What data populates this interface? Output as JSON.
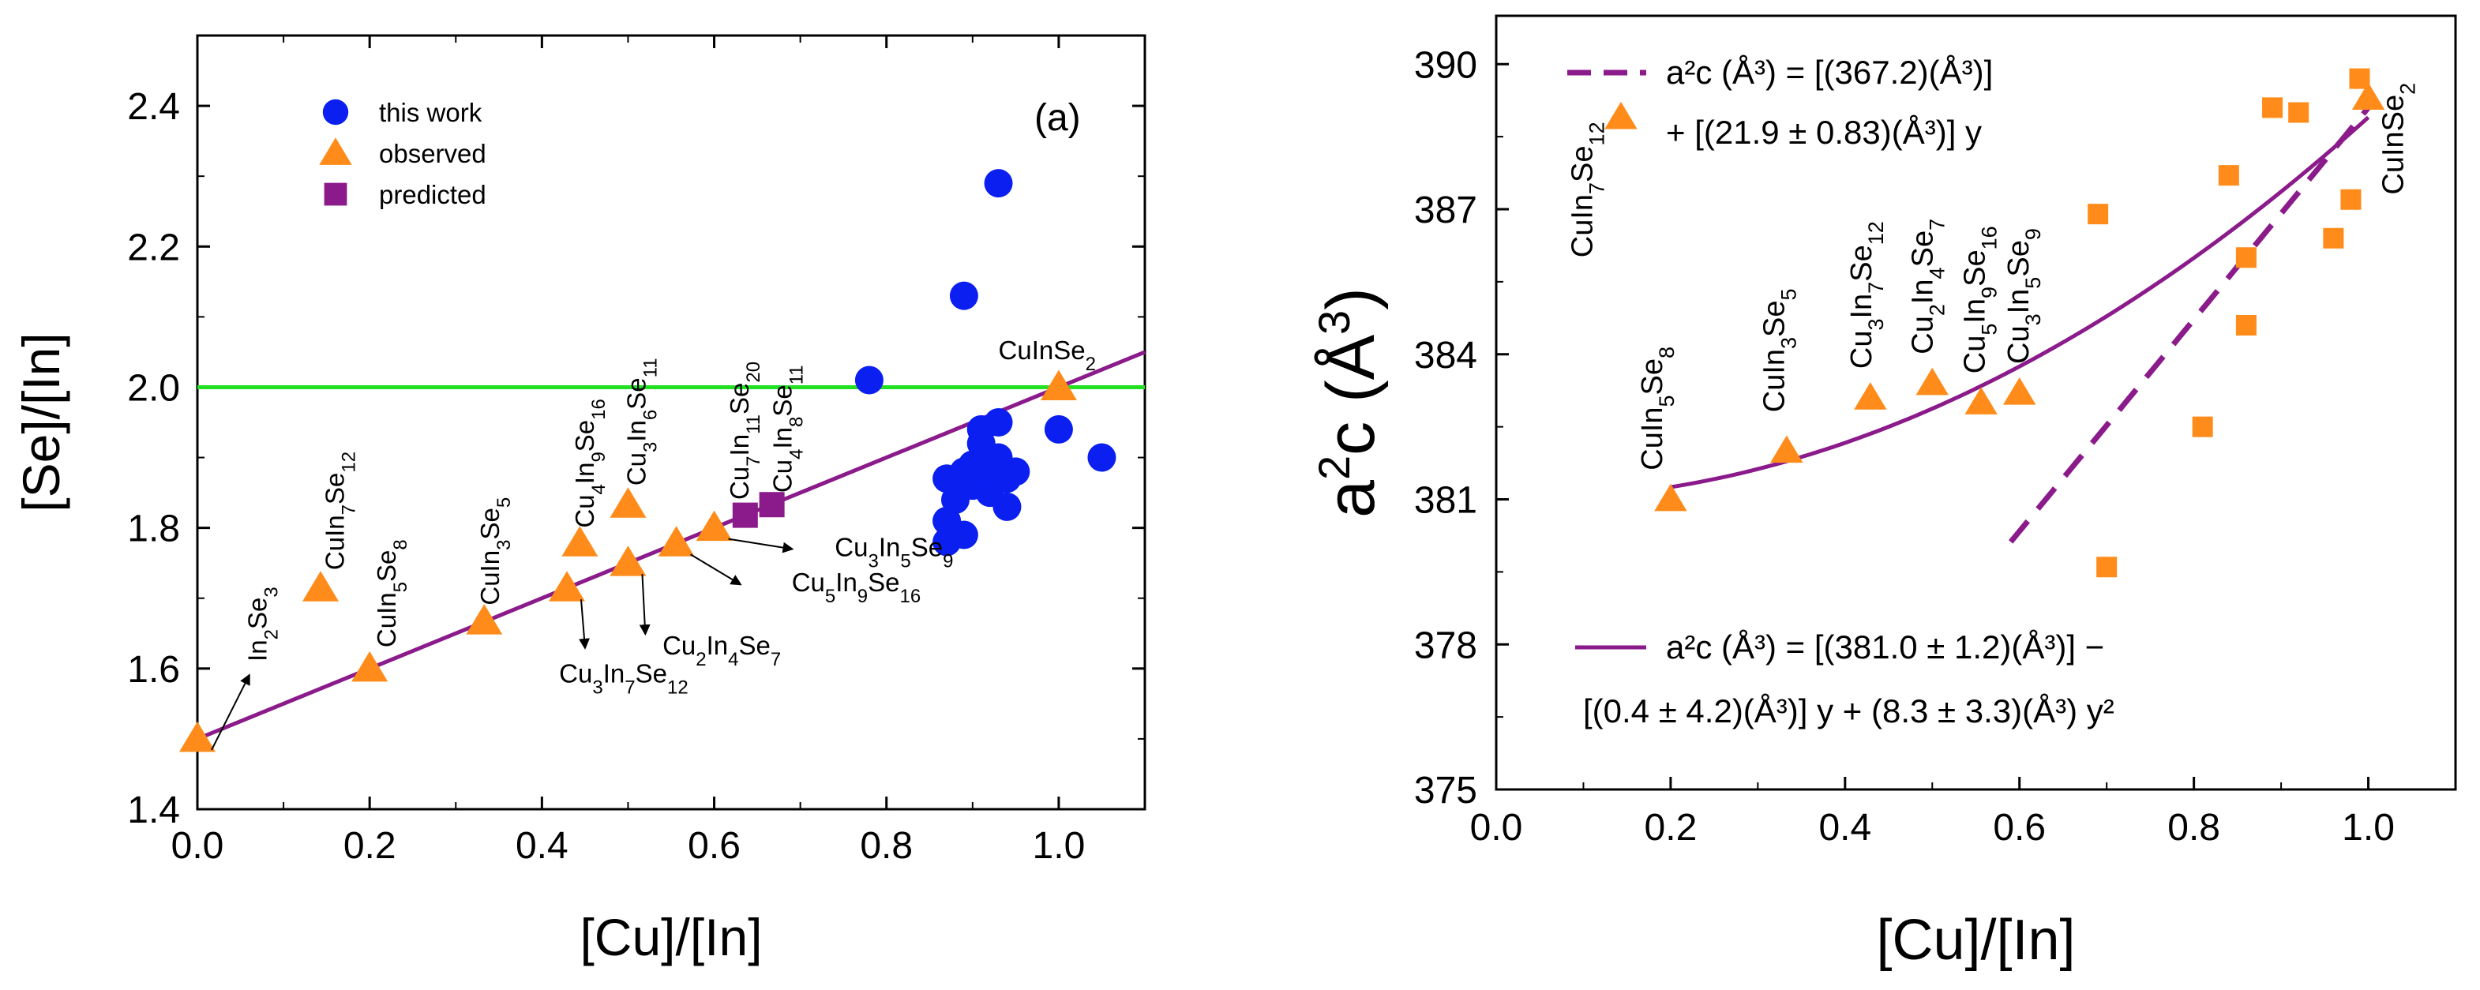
{
  "chart_data": [
    {
      "type": "scatter",
      "panel_label": "(a)",
      "xlabel": "[Cu]/[In]",
      "ylabel": "[Se]/[In]",
      "xlim": [
        0.0,
        1.1
      ],
      "ylim": [
        1.4,
        2.5
      ],
      "xticks": [
        "0.0",
        "0.2",
        "0.4",
        "0.6",
        "0.8",
        "1.0"
      ],
      "yticks": [
        "1.4",
        "1.6",
        "1.8",
        "2.0",
        "2.2",
        "2.4"
      ],
      "legend_position": "top-left",
      "series": [
        {
          "name": "this work",
          "marker": "circle",
          "color": "#0a1ff0",
          "points": [
            {
              "x": 0.78,
              "y": 2.01
            },
            {
              "x": 0.89,
              "y": 2.13
            },
            {
              "x": 0.93,
              "y": 2.29
            },
            {
              "x": 1.0,
              "y": 1.94
            },
            {
              "x": 1.05,
              "y": 1.9
            },
            {
              "x": 0.87,
              "y": 1.78
            },
            {
              "x": 0.87,
              "y": 1.81
            },
            {
              "x": 0.87,
              "y": 1.87
            },
            {
              "x": 0.88,
              "y": 1.84
            },
            {
              "x": 0.89,
              "y": 1.79
            },
            {
              "x": 0.89,
              "y": 1.88
            },
            {
              "x": 0.9,
              "y": 1.86
            },
            {
              "x": 0.9,
              "y": 1.89
            },
            {
              "x": 0.91,
              "y": 1.92
            },
            {
              "x": 0.91,
              "y": 1.94
            },
            {
              "x": 0.92,
              "y": 1.88
            },
            {
              "x": 0.92,
              "y": 1.85
            },
            {
              "x": 0.93,
              "y": 1.9
            },
            {
              "x": 0.93,
              "y": 1.95
            },
            {
              "x": 0.94,
              "y": 1.83
            },
            {
              "x": 0.94,
              "y": 1.87
            },
            {
              "x": 0.95,
              "y": 1.88
            }
          ]
        },
        {
          "name": "observed",
          "marker": "triangle",
          "color": "#ff8c1a",
          "points": [
            {
              "x": 0.0,
              "y": 1.5
            },
            {
              "x": 0.143,
              "y": 1.714
            },
            {
              "x": 0.2,
              "y": 1.6
            },
            {
              "x": 0.333,
              "y": 1.667
            },
            {
              "x": 0.429,
              "y": 1.714
            },
            {
              "x": 0.444,
              "y": 1.778
            },
            {
              "x": 0.5,
              "y": 1.75
            },
            {
              "x": 0.5,
              "y": 1.833
            },
            {
              "x": 0.556,
              "y": 1.778
            },
            {
              "x": 0.6,
              "y": 1.8
            },
            {
              "x": 1.0,
              "y": 2.0
            }
          ]
        },
        {
          "name": "predicted",
          "marker": "square",
          "color": "#8b1a8b",
          "points": [
            {
              "x": 0.636,
              "y": 1.818
            },
            {
              "x": 0.667,
              "y": 1.833
            }
          ]
        }
      ],
      "lines": [
        {
          "color": "#22e022",
          "x": [
            0.0,
            1.1
          ],
          "y": [
            2.0,
            2.0
          ]
        },
        {
          "color": "#8b1a8b",
          "x": [
            0.0,
            1.1
          ],
          "y": [
            1.5,
            2.05
          ]
        }
      ],
      "annotations": [
        {
          "base": "In",
          "sub1": "2",
          "mid": "Se",
          "sub2": "3",
          "x": 0.08,
          "y": 1.61,
          "rotated": true
        },
        {
          "base": "CuIn",
          "sub1": "7",
          "mid": "Se",
          "sub2": "12",
          "x": 0.17,
          "y": 1.74,
          "rotated": true
        },
        {
          "base": "CuIn",
          "sub1": "5",
          "mid": "Se",
          "sub2": "8",
          "x": 0.23,
          "y": 1.63,
          "rotated": true
        },
        {
          "base": "CuIn",
          "sub1": "3",
          "mid": "Se",
          "sub2": "5",
          "x": 0.35,
          "y": 1.69,
          "rotated": true
        },
        {
          "base": "Cu",
          "sub1": "4",
          "mid": "In",
          "sub2": "9",
          "end": "Se",
          "sub3": "16",
          "x": 0.46,
          "y": 1.8,
          "rotated": true
        },
        {
          "base": "Cu",
          "sub1": "3",
          "mid": "In",
          "sub2": "6",
          "end": "Se",
          "sub3": "11",
          "x": 0.52,
          "y": 1.86,
          "rotated": true
        },
        {
          "base": "Cu",
          "sub1": "7",
          "mid": "In",
          "sub2": "11",
          "end": "Se",
          "sub3": "20",
          "x": 0.64,
          "y": 1.84,
          "rotated": true
        },
        {
          "base": "Cu",
          "sub1": "4",
          "mid": "In",
          "sub2": "8",
          "end": "Se",
          "sub3": "11",
          "x": 0.69,
          "y": 1.85,
          "rotated": true
        },
        {
          "base": "CuInSe",
          "sub1": "2",
          "x": 0.93,
          "y": 2.04,
          "rotated": false
        },
        {
          "base": "Cu",
          "sub1": "3",
          "mid": "In",
          "sub2": "5",
          "end": "Se",
          "sub3": "9",
          "x": 0.74,
          "y": 1.76,
          "rotated": false
        },
        {
          "base": "Cu",
          "sub1": "5",
          "mid": "In",
          "sub2": "9",
          "end": "Se",
          "sub3": "16",
          "x": 0.69,
          "y": 1.71,
          "rotated": false
        },
        {
          "base": "Cu",
          "sub1": "2",
          "mid": "In",
          "sub2": "4",
          "end": "Se",
          "sub3": "7",
          "x": 0.54,
          "y": 1.62,
          "rotated": false
        },
        {
          "base": "Cu",
          "sub1": "3",
          "mid": "In",
          "sub2": "7",
          "end": "Se",
          "sub3": "12",
          "x": 0.42,
          "y": 1.58,
          "rotated": false
        }
      ]
    },
    {
      "type": "scatter",
      "xlabel": "[Cu]/[In]",
      "ylabel_base": "a",
      "ylabel_sup1": "2",
      "ylabel_mid": "c (Å",
      "ylabel_sup2": "3",
      "ylabel_end": ")",
      "xlim": [
        0.0,
        1.1
      ],
      "ylim": [
        375,
        391
      ],
      "xticks": [
        "0.0",
        "0.2",
        "0.4",
        "0.6",
        "0.8",
        "1.0"
      ],
      "yticks": [
        "375",
        "378",
        "381",
        "384",
        "387",
        "390"
      ],
      "series": [
        {
          "name": "squares",
          "marker": "square",
          "color": "#ff8c1a",
          "points": [
            {
              "x": 0.69,
              "y": 386.9
            },
            {
              "x": 0.7,
              "y": 379.6
            },
            {
              "x": 0.81,
              "y": 382.5
            },
            {
              "x": 0.84,
              "y": 387.7
            },
            {
              "x": 0.86,
              "y": 386.0
            },
            {
              "x": 0.86,
              "y": 384.6
            },
            {
              "x": 0.89,
              "y": 389.1
            },
            {
              "x": 0.92,
              "y": 389.0
            },
            {
              "x": 0.96,
              "y": 386.4
            },
            {
              "x": 0.98,
              "y": 387.2
            },
            {
              "x": 0.99,
              "y": 389.7
            }
          ]
        },
        {
          "name": "triangles",
          "marker": "triangle",
          "color": "#ff8c1a",
          "points": [
            {
              "x": 0.143,
              "y": 388.9
            },
            {
              "x": 0.2,
              "y": 381.0
            },
            {
              "x": 0.333,
              "y": 382.0
            },
            {
              "x": 0.429,
              "y": 383.1
            },
            {
              "x": 0.5,
              "y": 383.4
            },
            {
              "x": 0.556,
              "y": 383.0
            },
            {
              "x": 0.6,
              "y": 383.2
            },
            {
              "x": 1.0,
              "y": 389.3
            }
          ]
        }
      ],
      "fits": [
        {
          "style": "dashed",
          "color": "#8b1a8b",
          "kind": "linear",
          "x": [
            0.59,
            1.0
          ],
          "intercept": 367.2,
          "slope": 21.9
        },
        {
          "style": "solid",
          "color": "#8b1a8b",
          "kind": "quadratic",
          "x": [
            0.2,
            1.0
          ],
          "c0": 381.0,
          "c1": -0.4,
          "c2": 8.3
        }
      ],
      "equations": {
        "dashed_line1": "a²c (Å³) = [(367.2)(Å³)]",
        "dashed_line2": "+ [(21.9 ± 0.83)(Å³)] y",
        "solid_line1": "a²c (Å³) = [(381.0 ± 1.2)(Å³)] −",
        "solid_line2": "[(0.4 ± 4.2)(Å³)] y + (8.3 ± 3.3)(Å³) y²"
      },
      "annotations": [
        {
          "base": "CuIn",
          "sub1": "7",
          "mid": "Se",
          "sub2": "12",
          "x": 0.11,
          "y": 386.0,
          "rotated": true
        },
        {
          "base": "CuIn",
          "sub1": "5",
          "mid": "Se",
          "sub2": "8",
          "x": 0.19,
          "y": 381.6,
          "rotated": true
        },
        {
          "base": "CuIn",
          "sub1": "3",
          "mid": "Se",
          "sub2": "5",
          "x": 0.33,
          "y": 382.8,
          "rotated": true
        },
        {
          "base": "Cu",
          "sub1": "3",
          "mid": "In",
          "sub2": "7",
          "end": "Se",
          "sub3": "12",
          "x": 0.43,
          "y": 383.7,
          "rotated": true
        },
        {
          "base": "Cu",
          "sub1": "2",
          "mid": "In",
          "sub2": "4",
          "end": "Se",
          "sub3": "7",
          "x": 0.5,
          "y": 384.0,
          "rotated": true
        },
        {
          "base": "Cu",
          "sub1": "5",
          "mid": "In",
          "sub2": "9",
          "end": "Se",
          "sub3": "16",
          "x": 0.56,
          "y": 383.6,
          "rotated": true
        },
        {
          "base": "Cu",
          "sub1": "3",
          "mid": "In",
          "sub2": "5",
          "end": "Se",
          "sub3": "9",
          "x": 0.61,
          "y": 383.8,
          "rotated": true
        },
        {
          "base": "CuInSe",
          "sub1": "2",
          "x": 1.04,
          "y": 387.3,
          "rotated": true
        }
      ]
    }
  ]
}
